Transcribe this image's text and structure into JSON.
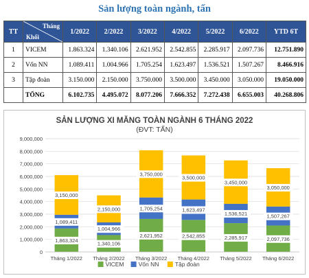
{
  "heading": "Sản lượng toàn ngành, tấn",
  "table": {
    "col_tt": "TT",
    "diag_top": "Tháng",
    "diag_bottom": "Khối",
    "columns": [
      "1/2022",
      "2/2022",
      "3/2022",
      "4/2022",
      "5/2022",
      "6/2022",
      "YTD 6T"
    ],
    "rows": [
      {
        "tt": "1",
        "name": "VICEM",
        "values": [
          "1.863.324",
          "1.340.106",
          "2.621.952",
          "2.542.855",
          "2.285.917",
          "2.097.736",
          "12.751.890"
        ]
      },
      {
        "tt": "2",
        "name": "Vốn NN",
        "values": [
          "1.089.411",
          "1.004.966",
          "1.705.254",
          "1.623.497",
          "1.536.521",
          "1.507.267",
          "8.466.916"
        ]
      },
      {
        "tt": "3",
        "name": "Tập đoàn",
        "values": [
          "3.150.000",
          "2.150.000",
          "3.750.000",
          "3.500.000",
          "3.450.000",
          "3.050.000",
          "19.050.000"
        ]
      },
      {
        "tt": "",
        "name": "TỔNG",
        "values": [
          "6.102.735",
          "4.495.072",
          "8.077.206",
          "7.666.352",
          "7.272.438",
          "6.655.003",
          "40.268.806"
        ]
      }
    ]
  },
  "chart_data": {
    "type": "bar",
    "stacked": true,
    "title": "SẢN LƯỢNG XI MĂNG TOÀN NGÀNH 6 THÁNG 2022",
    "subtitle": "(ĐVT: TẤN)",
    "categories": [
      "Tháng 1/2022",
      "Tháng 2/2022",
      "Tháng 3/2022",
      "Tháng 4/2022",
      "Tháng 5/2022",
      "Tháng 6/2022"
    ],
    "series": [
      {
        "name": "VICEM",
        "color": "#70ad47",
        "values": [
          1863324,
          1340106,
          2621952,
          2542855,
          2285917,
          2097736
        ],
        "labels": [
          "1,863,324",
          "1,340,106",
          "2,621,952",
          "2,542,855",
          "2,285,917",
          "2,097,736"
        ]
      },
      {
        "name": "Vốn NN",
        "color": "#4472c4",
        "values": [
          1089411,
          1004966,
          1705254,
          1623497,
          1536521,
          1507267
        ],
        "labels": [
          "1,089,411",
          "1,004,966",
          "1,705,254",
          "1,623,497",
          "1,536,521",
          "1,507,267"
        ]
      },
      {
        "name": "Tập đoàn",
        "color": "#ffc000",
        "values": [
          3150000,
          2150000,
          3750000,
          3500000,
          3450000,
          3050000
        ],
        "labels": [
          "3,150,000",
          "2,150,000",
          "3,750,000",
          "3,500,000",
          "3,450,000",
          "3,050,000"
        ]
      }
    ],
    "ylim": [
      0,
      9000000
    ],
    "y_ticks": [
      "0",
      "1,000,000",
      "2,000,000",
      "3,000,000",
      "4,000,000",
      "5,000,000",
      "6,000,000",
      "7,000,000",
      "8,000,000",
      "9,000,000"
    ],
    "grid": true,
    "legend": "bottom"
  }
}
